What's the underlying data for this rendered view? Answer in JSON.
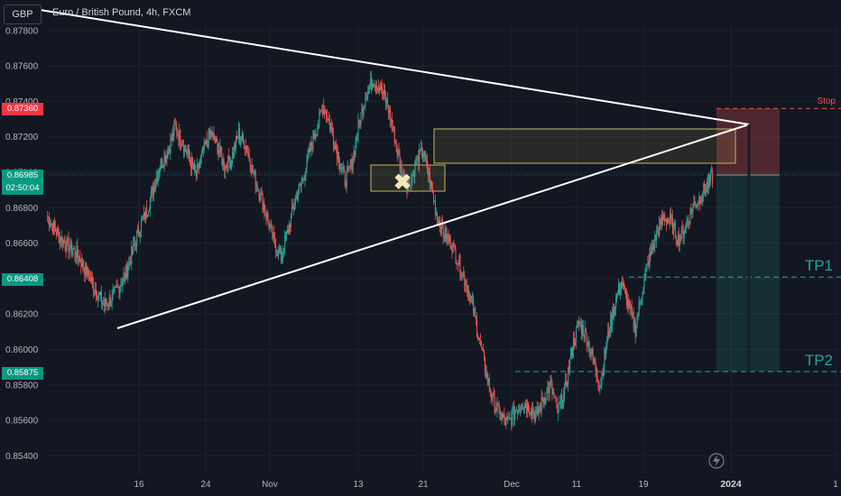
{
  "symbol_badge": "GBP",
  "title": "Euro / British Pound, 4h, FXCM",
  "colors": {
    "background": "#131722",
    "up": "#26a69a",
    "down": "#ef5350",
    "stop_zone": "#ef5350",
    "target_zone": "#26a69a",
    "trendline": "#ffffff",
    "zone_border": "#c9b458"
  },
  "labels": {
    "current_price": "0.86985",
    "countdown": "02:50:04",
    "stop_price": "0.87360",
    "tp1_price": "0.86408",
    "tp2_price": "0.85875",
    "stop_text": "Stop",
    "tp1_text": "TP1",
    "tp2_text": "TP2",
    "mark_icon": "x-icon",
    "lightning_icon": "lightning-icon"
  },
  "chart_data": {
    "type": "candlestick",
    "title": "Euro / British Pound, 4h, FXCM",
    "ylim": [
      0.853,
      0.8785
    ],
    "y_ticks": [
      "0.87800",
      "0.87600",
      "0.87400",
      "0.87200",
      "0.87000",
      "0.86800",
      "0.86600",
      "0.86400",
      "0.86200",
      "0.86000",
      "0.85800",
      "0.85600",
      "0.85400"
    ],
    "x_ticks": [
      {
        "label": "16",
        "bold": false
      },
      {
        "label": "24",
        "bold": false
      },
      {
        "label": "Nov",
        "bold": false
      },
      {
        "label": "13",
        "bold": false
      },
      {
        "label": "21",
        "bold": false
      },
      {
        "label": "Dec",
        "bold": false
      },
      {
        "label": "11",
        "bold": false
      },
      {
        "label": "19",
        "bold": false
      },
      {
        "label": "2024",
        "bold": true
      },
      {
        "label": "1",
        "bold": false
      }
    ],
    "close_path": [
      0.8675,
      0.8668,
      0.8662,
      0.8658,
      0.8655,
      0.8648,
      0.864,
      0.8632,
      0.8625,
      0.8628,
      0.8635,
      0.8642,
      0.8655,
      0.8668,
      0.8678,
      0.8692,
      0.8705,
      0.8712,
      0.8725,
      0.8718,
      0.8708,
      0.8698,
      0.8712,
      0.8722,
      0.8715,
      0.8703,
      0.8708,
      0.8722,
      0.8715,
      0.87,
      0.8688,
      0.8675,
      0.866,
      0.8652,
      0.8668,
      0.8685,
      0.8695,
      0.8712,
      0.8725,
      0.8738,
      0.8725,
      0.871,
      0.8695,
      0.8705,
      0.8728,
      0.8745,
      0.8752,
      0.8748,
      0.8738,
      0.872,
      0.87,
      0.8692,
      0.8705,
      0.8712,
      0.8695,
      0.8675,
      0.8665,
      0.866,
      0.865,
      0.8638,
      0.8625,
      0.8605,
      0.8585,
      0.857,
      0.8562,
      0.8558,
      0.8565,
      0.857,
      0.8568,
      0.8562,
      0.8572,
      0.858,
      0.8565,
      0.8575,
      0.86,
      0.8615,
      0.8608,
      0.8595,
      0.858,
      0.8605,
      0.8625,
      0.8638,
      0.8625,
      0.8612,
      0.8635,
      0.8652,
      0.8665,
      0.8675,
      0.8672,
      0.8662,
      0.8668,
      0.868,
      0.8685,
      0.8692,
      0.8698
    ]
  },
  "levels": {
    "entry": 0.86985,
    "stop": 0.8736,
    "tp1": 0.86408,
    "tp2": 0.85875
  }
}
